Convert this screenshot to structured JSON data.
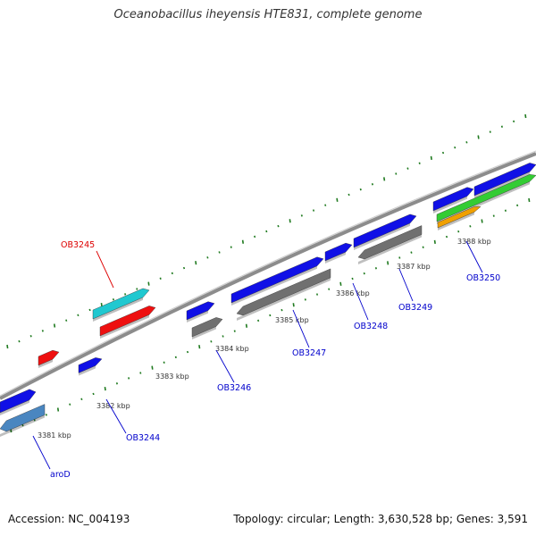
{
  "title": "Oceanobacillus iheyensis HTE831, complete genome",
  "footer": {
    "accession": "Accession: NC_004193",
    "summary": "Topology: circular; Length: 3,630,528 bp; Genes: 3,591"
  },
  "colors": {
    "backbone": "#8c8c8c",
    "tick": "#1f7a1f",
    "blue": "#1010e6",
    "red": "#ee1010",
    "cyan": "#20c8d0",
    "gray": "#707070",
    "steel": "#4a86c0",
    "green": "#33cc33",
    "orange": "#f0a000",
    "label_blue": "#0000cc",
    "label_red": "#dd0000"
  },
  "ticks": {
    "labels": [
      "3381 kbp",
      "3382 kbp",
      "3383 kbp",
      "3384 kbp",
      "3385 kbp",
      "3386 kbp",
      "3387 kbp",
      "3388 kbp"
    ]
  },
  "genes": [
    {
      "name": "aroD",
      "color": "label_blue"
    },
    {
      "name": "OB3244",
      "color": "label_blue"
    },
    {
      "name": "OB3245",
      "color": "label_red"
    },
    {
      "name": "OB3246",
      "color": "label_blue"
    },
    {
      "name": "OB3247",
      "color": "label_blue"
    },
    {
      "name": "OB3248",
      "color": "label_blue"
    },
    {
      "name": "OB3249",
      "color": "label_blue"
    },
    {
      "name": "OB3250",
      "color": "label_blue"
    }
  ]
}
